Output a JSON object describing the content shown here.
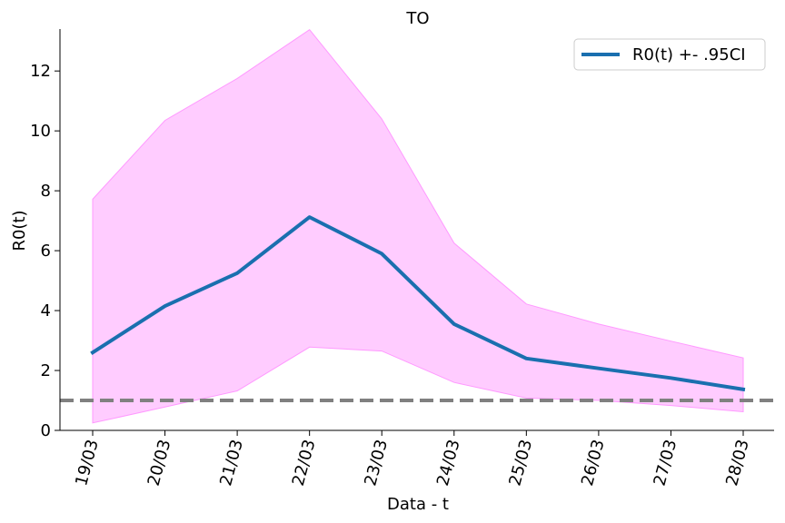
{
  "chart_data": {
    "type": "line",
    "title": "TO",
    "xlabel": "Data - t",
    "ylabel": "R0(t)",
    "categories": [
      "19/03",
      "20/03",
      "21/03",
      "22/03",
      "23/03",
      "24/03",
      "25/03",
      "26/03",
      "27/03",
      "28/03"
    ],
    "series": [
      {
        "name": "R0(t) +- .95CI",
        "values": [
          2.6,
          4.15,
          5.25,
          7.12,
          5.9,
          3.55,
          2.4,
          2.07,
          1.75,
          1.37
        ],
        "color": "#1a6faf"
      }
    ],
    "ci_upper": [
      7.72,
      10.35,
      11.75,
      13.38,
      10.4,
      6.25,
      4.22,
      3.55,
      2.98,
      2.42
    ],
    "ci_lower": [
      0.25,
      0.78,
      1.32,
      2.78,
      2.65,
      1.6,
      1.08,
      1.0,
      0.83,
      0.62
    ],
    "ci_color": "#ffccff",
    "ci_edge_color": "#ff99ff",
    "reference_line": {
      "y": 1,
      "color": "#808080",
      "style": "dashed"
    },
    "ylim": [
      0,
      13.4
    ],
    "yticks": [
      0,
      2,
      4,
      6,
      8,
      10,
      12
    ],
    "legend": {
      "position": "top-right",
      "label": "R0(t) +- .95CI"
    },
    "grid": false
  }
}
